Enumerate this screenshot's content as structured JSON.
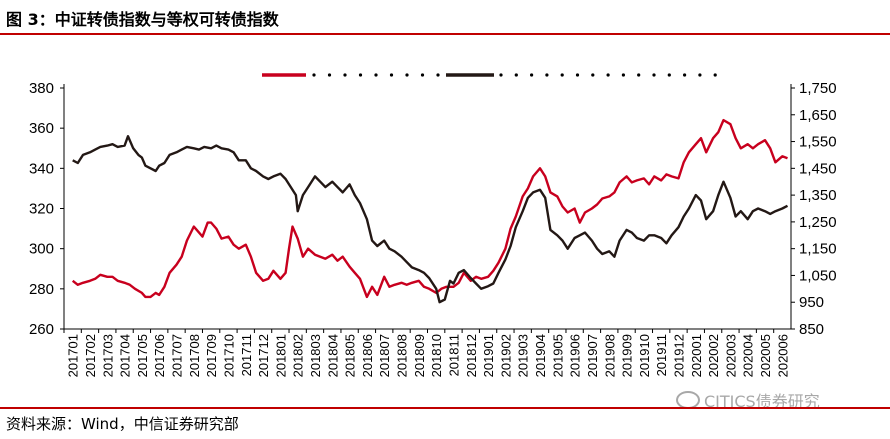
{
  "header": {
    "title": "图 3：中证转债指数与等权可转债指数"
  },
  "footer": {
    "source": "资料来源：Wind，中信证券研究部"
  },
  "watermark": {
    "text": "CITICS债券研究"
  },
  "chart_data": {
    "type": "line",
    "title": "",
    "x": [
      "201701",
      "201702",
      "201703",
      "201704",
      "201705",
      "201706",
      "201707",
      "201708",
      "201709",
      "201710",
      "201711",
      "201712",
      "201801",
      "201802",
      "201803",
      "201804",
      "201805",
      "201806",
      "201807",
      "201808",
      "201809",
      "201810",
      "201811",
      "201812",
      "201901",
      "201902",
      "201903",
      "201904",
      "201905",
      "201906",
      "201907",
      "201908",
      "201909",
      "201910",
      "201911",
      "201912",
      "202001",
      "202002",
      "202003",
      "202004",
      "202005",
      "202006"
    ],
    "y_left": {
      "ticks": [
        260,
        280,
        300,
        320,
        340,
        360,
        380
      ],
      "ylim": [
        260,
        380
      ]
    },
    "y_right": {
      "ticks": [
        "850",
        "950",
        "1,050",
        "1,150",
        "1,250",
        "1,350",
        "1,450",
        "1,550",
        "1,650",
        "1,750"
      ],
      "ylim": [
        850,
        1750
      ]
    },
    "legend": {
      "placement": "top"
    },
    "grid": false,
    "series": [
      {
        "axis": "left",
        "color": "#c8001e",
        "values": [
          [
            0,
            284
          ],
          [
            0.3,
            282
          ],
          [
            0.6,
            283
          ],
          [
            1,
            284
          ],
          [
            1.3,
            285
          ],
          [
            1.6,
            287
          ],
          [
            2,
            286
          ],
          [
            2.3,
            286
          ],
          [
            2.6,
            284
          ],
          [
            3,
            283
          ],
          [
            3.3,
            282
          ],
          [
            3.6,
            280
          ],
          [
            4,
            278
          ],
          [
            4.2,
            276
          ],
          [
            4.5,
            276
          ],
          [
            4.8,
            278
          ],
          [
            5,
            277
          ],
          [
            5.3,
            281
          ],
          [
            5.6,
            288
          ],
          [
            6,
            292
          ],
          [
            6.3,
            296
          ],
          [
            6.6,
            304
          ],
          [
            7,
            311
          ],
          [
            7.2,
            309
          ],
          [
            7.5,
            306
          ],
          [
            7.8,
            313
          ],
          [
            8,
            313
          ],
          [
            8.3,
            310
          ],
          [
            8.6,
            305
          ],
          [
            9,
            306
          ],
          [
            9.3,
            302
          ],
          [
            9.6,
            300
          ],
          [
            10,
            302
          ],
          [
            10.3,
            296
          ],
          [
            10.6,
            288
          ],
          [
            11,
            284
          ],
          [
            11.3,
            285
          ],
          [
            11.6,
            289
          ],
          [
            12,
            285
          ],
          [
            12.3,
            288
          ],
          [
            12.5,
            300
          ],
          [
            12.7,
            311
          ],
          [
            13,
            305
          ],
          [
            13.3,
            296
          ],
          [
            13.6,
            300
          ],
          [
            14,
            297
          ],
          [
            14.3,
            296
          ],
          [
            14.6,
            295
          ],
          [
            15,
            297
          ],
          [
            15.3,
            294
          ],
          [
            15.6,
            296
          ],
          [
            16,
            291
          ],
          [
            16.3,
            288
          ],
          [
            16.6,
            285
          ],
          [
            17,
            276
          ],
          [
            17.3,
            281
          ],
          [
            17.6,
            277
          ],
          [
            18,
            286
          ],
          [
            18.3,
            281
          ],
          [
            18.6,
            282
          ],
          [
            19,
            283
          ],
          [
            19.3,
            282
          ],
          [
            19.6,
            283
          ],
          [
            20,
            284
          ],
          [
            20.3,
            281
          ],
          [
            20.6,
            280
          ],
          [
            21,
            278
          ],
          [
            21.3,
            280
          ],
          [
            21.6,
            281
          ],
          [
            22,
            281
          ],
          [
            22.3,
            283
          ],
          [
            22.6,
            288
          ],
          [
            23,
            284
          ],
          [
            23.3,
            286
          ],
          [
            23.6,
            285
          ],
          [
            24,
            286
          ],
          [
            24.3,
            289
          ],
          [
            24.6,
            293
          ],
          [
            25,
            300
          ],
          [
            25.3,
            310
          ],
          [
            25.6,
            316
          ],
          [
            26,
            326
          ],
          [
            26.3,
            330
          ],
          [
            26.6,
            336
          ],
          [
            27,
            340
          ],
          [
            27.3,
            336
          ],
          [
            27.6,
            328
          ],
          [
            28,
            326
          ],
          [
            28.3,
            321
          ],
          [
            28.6,
            318
          ],
          [
            29,
            320
          ],
          [
            29.3,
            313
          ],
          [
            29.6,
            318
          ],
          [
            30,
            320
          ],
          [
            30.3,
            322
          ],
          [
            30.6,
            325
          ],
          [
            31,
            326
          ],
          [
            31.3,
            328
          ],
          [
            31.6,
            333
          ],
          [
            32,
            336
          ],
          [
            32.3,
            333
          ],
          [
            32.6,
            334
          ],
          [
            33,
            335
          ],
          [
            33.3,
            332
          ],
          [
            33.6,
            336
          ],
          [
            34,
            334
          ],
          [
            34.3,
            337
          ],
          [
            34.6,
            336
          ],
          [
            35,
            335
          ],
          [
            35.3,
            343
          ],
          [
            35.6,
            348
          ],
          [
            36,
            352
          ],
          [
            36.3,
            355
          ],
          [
            36.6,
            348
          ],
          [
            37,
            355
          ],
          [
            37.3,
            358
          ],
          [
            37.6,
            364
          ],
          [
            38,
            362
          ],
          [
            38.3,
            355
          ],
          [
            38.6,
            350
          ],
          [
            39,
            352
          ],
          [
            39.3,
            350
          ],
          [
            39.6,
            352
          ],
          [
            40,
            354
          ],
          [
            40.3,
            350
          ],
          [
            40.6,
            343
          ],
          [
            41,
            346
          ],
          [
            41.3,
            345
          ]
        ]
      },
      {
        "axis": "right",
        "color": "#231815",
        "values": [
          [
            0,
            1480
          ],
          [
            0.3,
            1470
          ],
          [
            0.6,
            1500
          ],
          [
            1,
            1510
          ],
          [
            1.3,
            1520
          ],
          [
            1.6,
            1530
          ],
          [
            2,
            1535
          ],
          [
            2.3,
            1540
          ],
          [
            2.6,
            1530
          ],
          [
            3,
            1535
          ],
          [
            3.2,
            1570
          ],
          [
            3.5,
            1525
          ],
          [
            3.8,
            1500
          ],
          [
            4,
            1490
          ],
          [
            4.2,
            1460
          ],
          [
            4.5,
            1450
          ],
          [
            4.8,
            1440
          ],
          [
            5,
            1460
          ],
          [
            5.3,
            1470
          ],
          [
            5.6,
            1500
          ],
          [
            6,
            1510
          ],
          [
            6.3,
            1520
          ],
          [
            6.6,
            1530
          ],
          [
            7,
            1525
          ],
          [
            7.3,
            1520
          ],
          [
            7.6,
            1530
          ],
          [
            8,
            1525
          ],
          [
            8.3,
            1535
          ],
          [
            8.6,
            1525
          ],
          [
            9,
            1520
          ],
          [
            9.3,
            1510
          ],
          [
            9.6,
            1480
          ],
          [
            10,
            1480
          ],
          [
            10.3,
            1450
          ],
          [
            10.6,
            1440
          ],
          [
            11,
            1420
          ],
          [
            11.3,
            1410
          ],
          [
            11.6,
            1420
          ],
          [
            12,
            1430
          ],
          [
            12.3,
            1410
          ],
          [
            12.6,
            1380
          ],
          [
            12.9,
            1350
          ],
          [
            13,
            1290
          ],
          [
            13.3,
            1350
          ],
          [
            13.6,
            1380
          ],
          [
            14,
            1420
          ],
          [
            14.3,
            1400
          ],
          [
            14.6,
            1380
          ],
          [
            15,
            1400
          ],
          [
            15.3,
            1380
          ],
          [
            15.6,
            1360
          ],
          [
            16,
            1390
          ],
          [
            16.3,
            1350
          ],
          [
            16.6,
            1320
          ],
          [
            17,
            1260
          ],
          [
            17.3,
            1180
          ],
          [
            17.6,
            1160
          ],
          [
            18,
            1180
          ],
          [
            18.3,
            1150
          ],
          [
            18.6,
            1140
          ],
          [
            19,
            1120
          ],
          [
            19.3,
            1100
          ],
          [
            19.6,
            1080
          ],
          [
            20,
            1070
          ],
          [
            20.3,
            1060
          ],
          [
            20.6,
            1040
          ],
          [
            21,
            1000
          ],
          [
            21.2,
            950
          ],
          [
            21.5,
            960
          ],
          [
            21.8,
            1030
          ],
          [
            22,
            1020
          ],
          [
            22.3,
            1060
          ],
          [
            22.6,
            1070
          ],
          [
            23,
            1040
          ],
          [
            23.3,
            1020
          ],
          [
            23.6,
            1000
          ],
          [
            24,
            1010
          ],
          [
            24.3,
            1020
          ],
          [
            24.6,
            1060
          ],
          [
            25,
            1110
          ],
          [
            25.3,
            1160
          ],
          [
            25.6,
            1230
          ],
          [
            26,
            1290
          ],
          [
            26.3,
            1340
          ],
          [
            26.6,
            1360
          ],
          [
            27,
            1370
          ],
          [
            27.3,
            1340
          ],
          [
            27.6,
            1220
          ],
          [
            28,
            1200
          ],
          [
            28.3,
            1180
          ],
          [
            28.6,
            1150
          ],
          [
            29,
            1190
          ],
          [
            29.3,
            1200
          ],
          [
            29.6,
            1210
          ],
          [
            30,
            1180
          ],
          [
            30.3,
            1150
          ],
          [
            30.6,
            1130
          ],
          [
            31,
            1140
          ],
          [
            31.3,
            1120
          ],
          [
            31.6,
            1180
          ],
          [
            32,
            1220
          ],
          [
            32.3,
            1210
          ],
          [
            32.6,
            1190
          ],
          [
            33,
            1180
          ],
          [
            33.3,
            1200
          ],
          [
            33.6,
            1200
          ],
          [
            34,
            1190
          ],
          [
            34.3,
            1170
          ],
          [
            34.6,
            1200
          ],
          [
            35,
            1230
          ],
          [
            35.3,
            1270
          ],
          [
            35.6,
            1300
          ],
          [
            36,
            1350
          ],
          [
            36.3,
            1330
          ],
          [
            36.6,
            1260
          ],
          [
            37,
            1290
          ],
          [
            37.3,
            1350
          ],
          [
            37.6,
            1400
          ],
          [
            38,
            1340
          ],
          [
            38.3,
            1270
          ],
          [
            38.6,
            1290
          ],
          [
            39,
            1260
          ],
          [
            39.3,
            1290
          ],
          [
            39.6,
            1300
          ],
          [
            40,
            1290
          ],
          [
            40.3,
            1280
          ],
          [
            40.6,
            1290
          ],
          [
            41,
            1300
          ],
          [
            41.3,
            1310
          ]
        ]
      }
    ]
  }
}
